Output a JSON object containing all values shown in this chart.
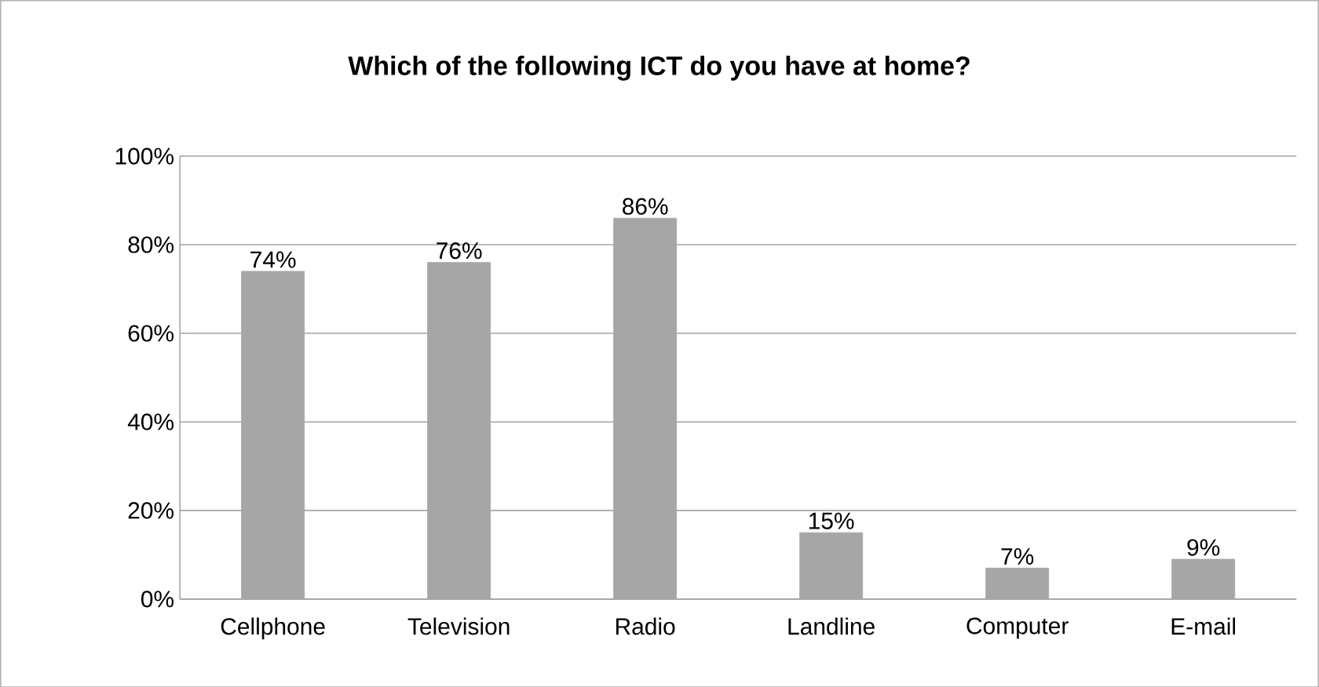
{
  "chart_data": {
    "type": "bar",
    "title": "Which of the following ICT do you have at home?",
    "categories": [
      "Cellphone",
      "Television",
      "Radio",
      "Landline",
      "Computer",
      "E-mail"
    ],
    "values": [
      74,
      76,
      86,
      15,
      7,
      9
    ],
    "value_labels": [
      "74%",
      "76%",
      "86%",
      "15%",
      "7%",
      "9%"
    ],
    "color": "#a6a6a6",
    "ylim": [
      0,
      100
    ],
    "yticks": [
      {
        "value": 0,
        "label": "0%"
      },
      {
        "value": 20,
        "label": "20%"
      },
      {
        "value": 40,
        "label": "40%"
      },
      {
        "value": 60,
        "label": "60%"
      },
      {
        "value": 80,
        "label": "80%"
      },
      {
        "value": 100,
        "label": "100%"
      }
    ],
    "grid": "y"
  }
}
